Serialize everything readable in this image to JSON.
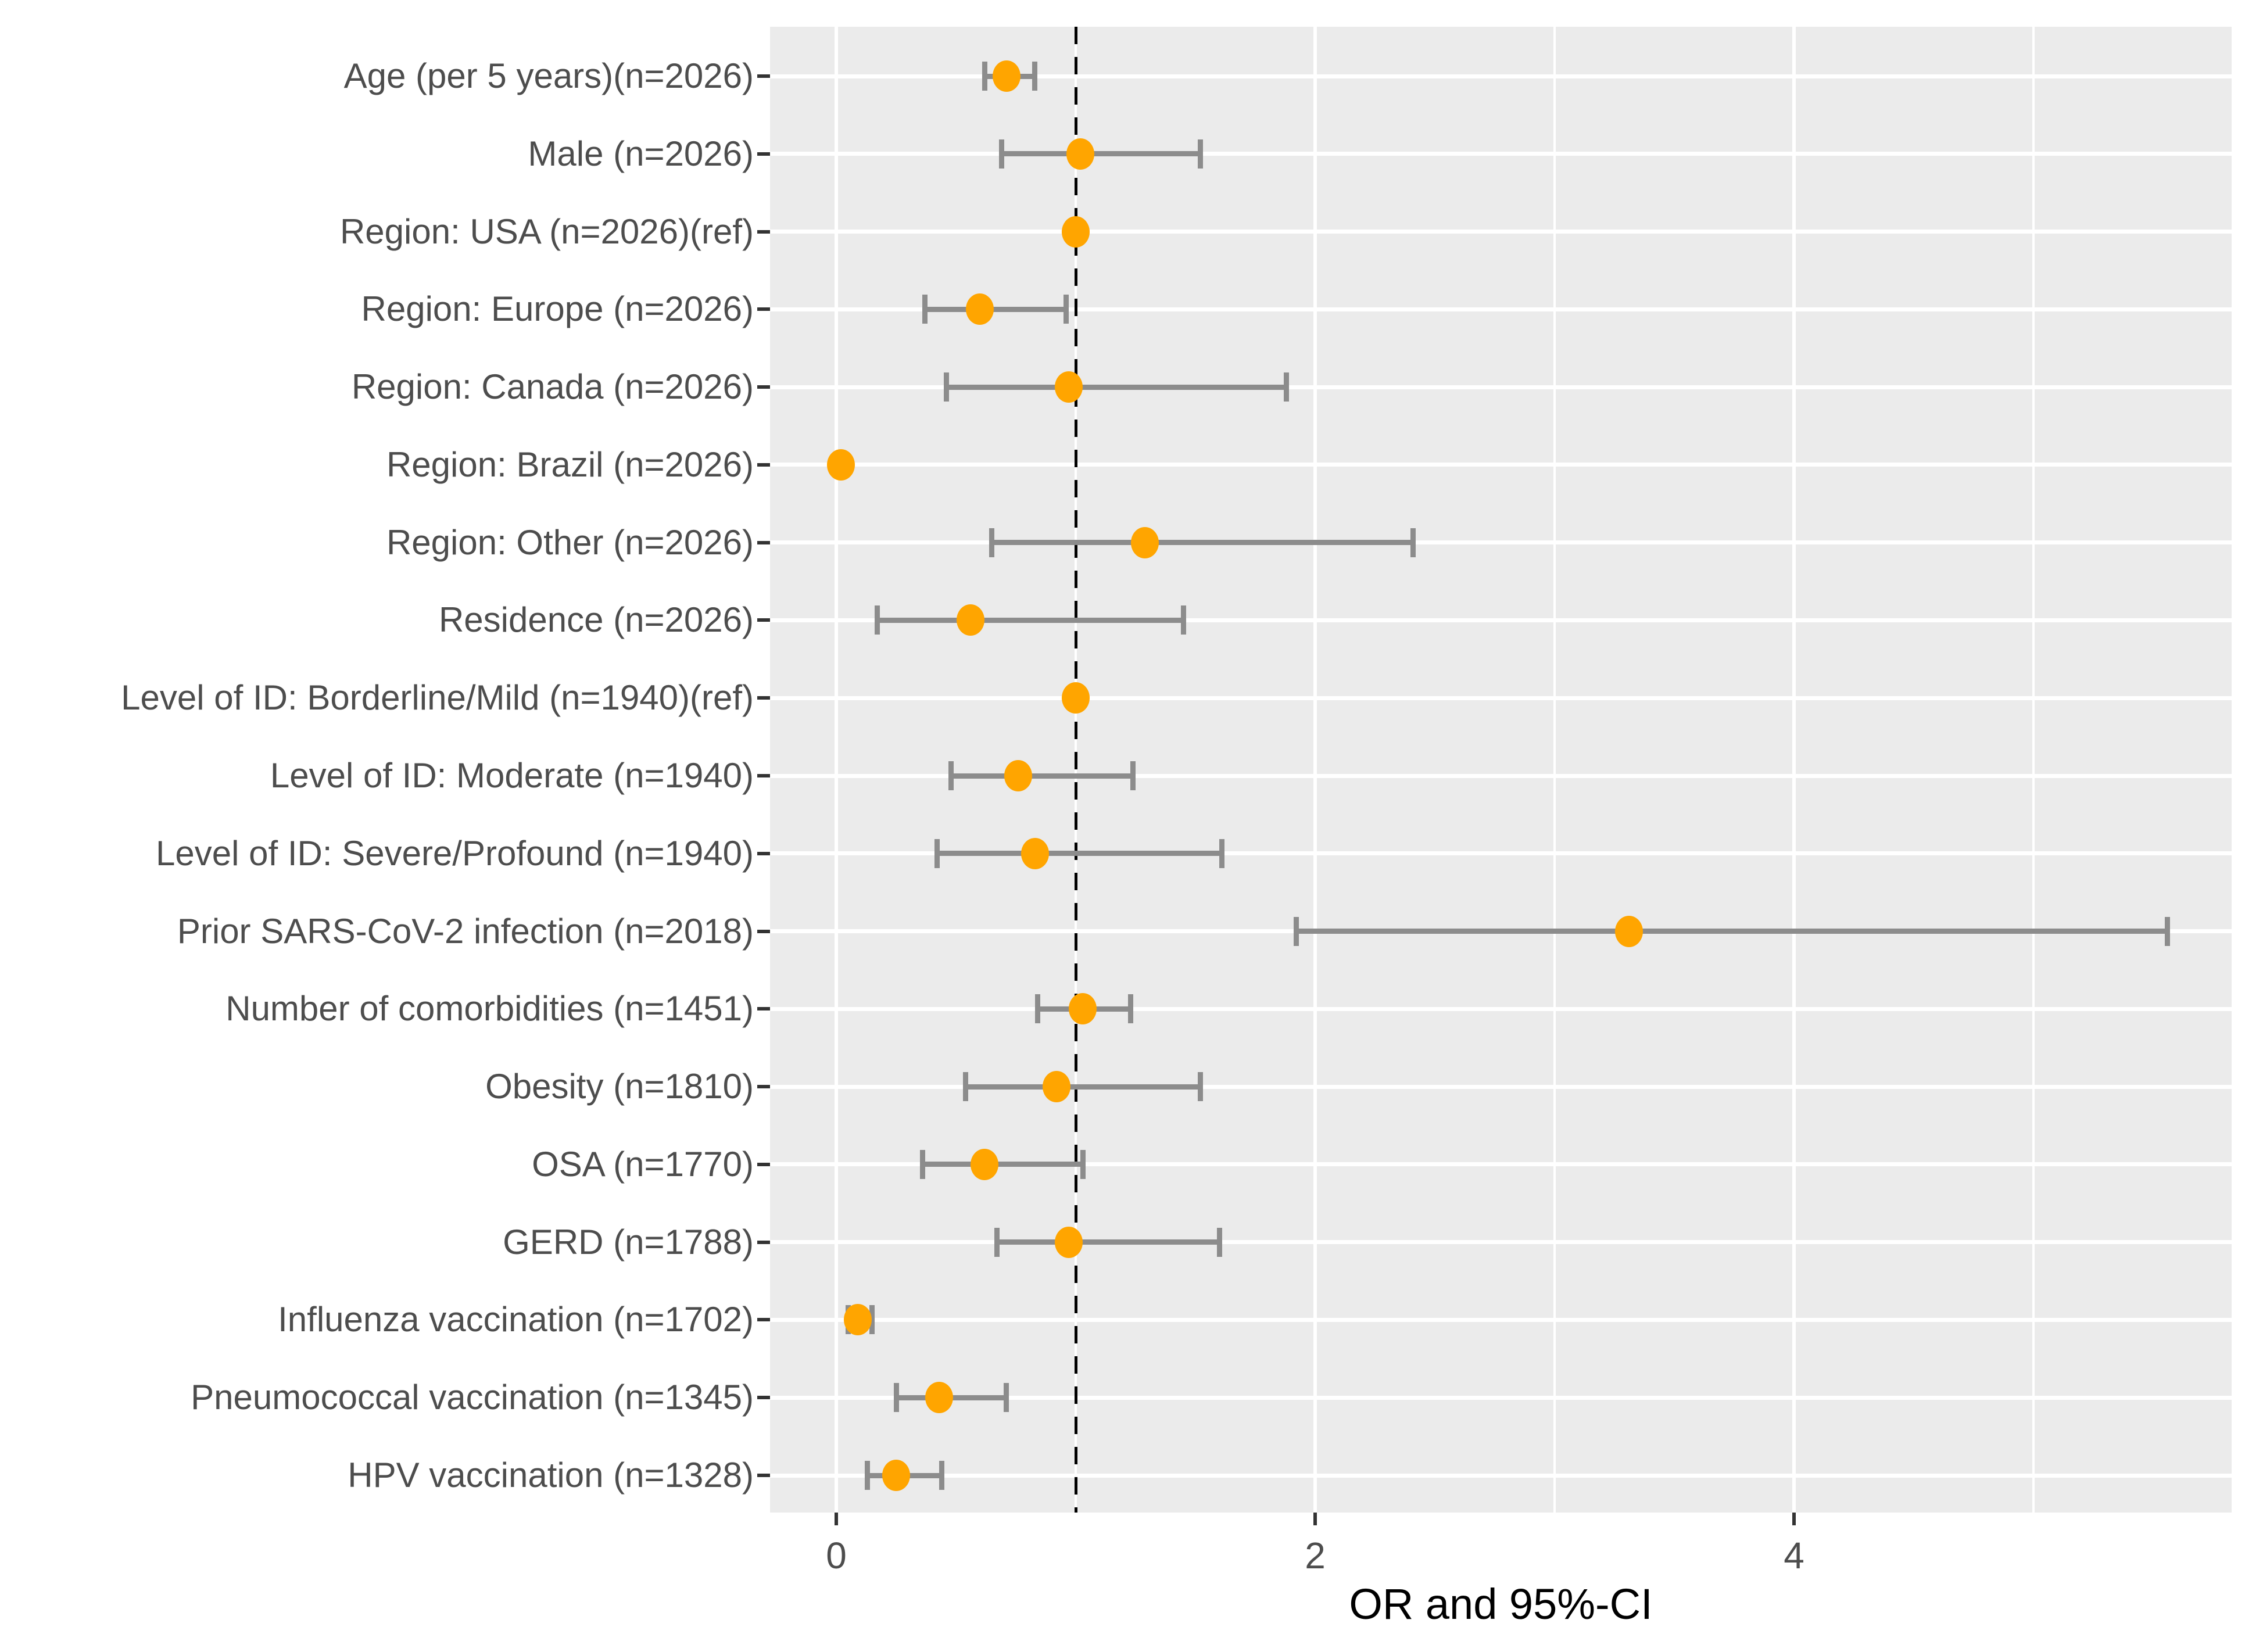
{
  "chart_data": {
    "type": "scatter",
    "variant": "forest-plot",
    "title": "",
    "xlabel": "OR and 95%-CI",
    "ylabel": "",
    "xlim": [
      -0.28,
      5.83
    ],
    "x_major_ticks": [
      0,
      2,
      4
    ],
    "x_minor_gridlines": [
      1,
      3,
      5
    ],
    "reference_line_x": 1,
    "grid": true,
    "legend": "none",
    "colors": {
      "point": "#FFA500",
      "errorbar": "#8C8C8C",
      "panel_background": "#EBEBEB",
      "gridline": "#FFFFFF",
      "reference_line": "#000000",
      "tick_mark": "#333333",
      "tick_label": "#4D4D4D",
      "axis_title": "#000000"
    },
    "rows": [
      {
        "label": "Age (per 5 years)(n=2026)",
        "or": 0.71,
        "ci_low": 0.62,
        "ci_high": 0.83
      },
      {
        "label": "Male (n=2026)",
        "or": 1.02,
        "ci_low": 0.69,
        "ci_high": 1.52
      },
      {
        "label": "Region: USA (n=2026)(ref)",
        "or": 1.0,
        "ci_low": null,
        "ci_high": null
      },
      {
        "label": "Region: Europe (n=2026)",
        "or": 0.6,
        "ci_low": 0.37,
        "ci_high": 0.96
      },
      {
        "label": "Region: Canada (n=2026)",
        "or": 0.97,
        "ci_low": 0.46,
        "ci_high": 1.88
      },
      {
        "label": "Region: Brazil (n=2026)",
        "or": 0.02,
        "ci_low": null,
        "ci_high": null
      },
      {
        "label": "Region: Other (n=2026)",
        "or": 1.29,
        "ci_low": 0.65,
        "ci_high": 2.41
      },
      {
        "label": "Residence (n=2026)",
        "or": 0.56,
        "ci_low": 0.17,
        "ci_high": 1.45
      },
      {
        "label": "Level of ID: Borderline/Mild (n=1940)(ref)",
        "or": 1.0,
        "ci_low": null,
        "ci_high": null
      },
      {
        "label": "Level of ID: Moderate (n=1940)",
        "or": 0.76,
        "ci_low": 0.48,
        "ci_high": 1.24
      },
      {
        "label": "Level of ID: Severe/Profound (n=1940)",
        "or": 0.83,
        "ci_low": 0.42,
        "ci_high": 1.61
      },
      {
        "label": "Prior SARS-CoV-2 infection (n=2018)",
        "or": 3.31,
        "ci_low": 1.92,
        "ci_high": 5.56
      },
      {
        "label": "Number of comorbidities (n=1451)",
        "or": 1.03,
        "ci_low": 0.84,
        "ci_high": 1.23
      },
      {
        "label": "Obesity (n=1810)",
        "or": 0.92,
        "ci_low": 0.54,
        "ci_high": 1.52
      },
      {
        "label": "OSA (n=1770)",
        "or": 0.62,
        "ci_low": 0.36,
        "ci_high": 1.03
      },
      {
        "label": "GERD (n=1788)",
        "or": 0.97,
        "ci_low": 0.67,
        "ci_high": 1.6
      },
      {
        "label": "Influenza vaccination (n=1702)",
        "or": 0.09,
        "ci_low": 0.05,
        "ci_high": 0.15
      },
      {
        "label": "Pneumococcal vaccination (n=1345)",
        "or": 0.43,
        "ci_low": 0.25,
        "ci_high": 0.71
      },
      {
        "label": "HPV vaccination (n=1328)",
        "or": 0.25,
        "ci_low": 0.13,
        "ci_high": 0.44
      }
    ]
  }
}
